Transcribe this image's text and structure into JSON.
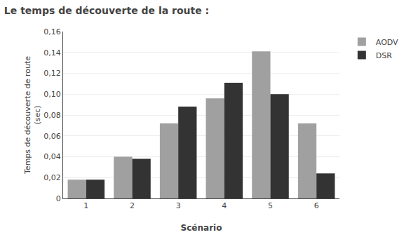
{
  "chart_data": {
    "type": "bar",
    "title": "Le temps de découverte de la route :",
    "xlabel": "Scénario",
    "ylabel": "Temps de découverte de route\n(sec)",
    "categories": [
      "1",
      "2",
      "3",
      "4",
      "5",
      "6"
    ],
    "series": [
      {
        "name": "AODV",
        "color": "#a0a0a0",
        "values": [
          0.018,
          0.04,
          0.072,
          0.096,
          0.141,
          0.072
        ]
      },
      {
        "name": "DSR",
        "color": "#333333",
        "values": [
          0.018,
          0.038,
          0.088,
          0.111,
          0.1,
          0.024
        ]
      }
    ],
    "ylim": [
      0,
      0.16
    ],
    "yticks": [
      0,
      {
        "value": 0.02,
        "label": "0,02"
      },
      {
        "value": 0.04,
        "label": "0,04"
      },
      {
        "value": 0.06,
        "label": "0,06"
      },
      {
        "value": 0.08,
        "label": "0,08"
      },
      {
        "value": 0.1,
        "label": "0,10"
      },
      {
        "value": 0.12,
        "label": "0,12"
      },
      {
        "value": 0.14,
        "label": "0,14"
      },
      {
        "value": 0.16,
        "label": "0,16"
      }
    ],
    "grid": true,
    "legend": "right"
  }
}
